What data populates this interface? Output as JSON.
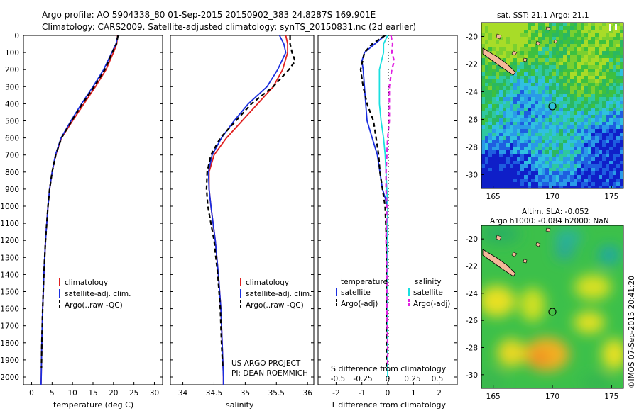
{
  "header": {
    "line1": "Argo profile: AO 5904338_80 01-Sep-2015 20150902_383 24.8287S 169.901E",
    "line2": "Climatology: CARS2009. Satellite-adjusted climatology: synTS_20150831.nc (2d earlier)"
  },
  "panels": {
    "temperature": {
      "xlabel": "temperature (deg C)",
      "xticks": [
        "0",
        "5",
        "10",
        "15",
        "20",
        "25",
        "30"
      ],
      "legend": [
        "climatology",
        "satellite-adj. clim.",
        "Argo(..raw -QC)"
      ]
    },
    "salinity": {
      "xlabel": "salinity",
      "xticks": [
        "34",
        "34.5",
        "35",
        "35.5",
        "36"
      ],
      "legend": [
        "climatology",
        "satellite-adj. clim.",
        "Argo(..raw -QC)"
      ],
      "note1": "US ARGO PROJECT",
      "note2": "PI: DEAN ROEMMICH"
    },
    "difference": {
      "xlabel": "T difference from climatology",
      "toplabel": "S difference from climatology",
      "xticks_T": [
        "-2",
        "-1",
        "0",
        "1",
        "2"
      ],
      "xticks_S": [
        "-0.5",
        "-0.25",
        "0",
        "0.25",
        "0.5"
      ],
      "legend_temp_title": "temperature",
      "legend_sal_title": "salinity",
      "legend_items": [
        "satellite",
        "Argo(-adj)",
        "satellite",
        "Argo(-adj)"
      ]
    },
    "sst_map": {
      "title": "sat. SST: 21.1  Argo: 21.1",
      "yticks": [
        "-20",
        "-22",
        "-24",
        "-26",
        "-28",
        "-30"
      ],
      "xticks": [
        "165",
        "170",
        "175"
      ]
    },
    "sla_map": {
      "title1": "Altim. SLA: -0.052",
      "title2": "Argo h1000: -0.084 h2000: NaN",
      "yticks": [
        "-20",
        "-22",
        "-24",
        "-26",
        "-28",
        "-30"
      ],
      "xticks": [
        "165",
        "170",
        "175"
      ],
      "stamp": "©IMOS 07-Sep-2015 20:41:20"
    },
    "depth_ticks": [
      "0",
      "100",
      "200",
      "300",
      "400",
      "500",
      "600",
      "700",
      "800",
      "900",
      "1000",
      "1100",
      "1200",
      "1300",
      "1400",
      "1500",
      "1600",
      "1700",
      "1800",
      "1900",
      "2000"
    ]
  },
  "colors": {
    "climatology": "#e02020",
    "satellite": "#1a2ee0",
    "argo": "#000000",
    "sal_satellite": "#19e0e0",
    "sal_argo": "#e020e0"
  },
  "chart_data": [
    {
      "type": "line",
      "xlabel": "temperature (deg C)",
      "ylabel": "",
      "xlim": [
        -2,
        32
      ],
      "ylim": [
        2060,
        0
      ],
      "x_axis": "temperature",
      "y_axis": "depth",
      "series": [
        {
          "name": "climatology",
          "depth": [
            0,
            50,
            100,
            200,
            300,
            400,
            500,
            600,
            700,
            800,
            900,
            1000,
            1200,
            1400,
            1600,
            1800,
            2000,
            2050
          ],
          "values": [
            21.0,
            20.8,
            20.0,
            18.2,
            15.6,
            12.8,
            10.0,
            7.3,
            5.9,
            5.0,
            4.4,
            4.0,
            3.4,
            3.0,
            2.7,
            2.5,
            2.35,
            2.3
          ]
        },
        {
          "name": "satellite-adj. clim.",
          "depth": [
            0,
            50,
            100,
            200,
            300,
            400,
            500,
            600,
            700,
            800,
            900,
            1000,
            1200,
            1400,
            1600,
            1800,
            2000,
            2050
          ],
          "values": [
            21.1,
            20.6,
            19.6,
            17.6,
            15.0,
            12.2,
            9.6,
            7.2,
            5.8,
            5.0,
            4.4,
            4.0,
            3.4,
            3.0,
            2.7,
            2.5,
            2.35,
            2.3
          ]
        },
        {
          "name": "Argo(..raw -QC)",
          "depth": [
            0,
            50,
            100,
            200,
            300,
            400,
            500,
            600,
            700,
            800,
            900,
            1000,
            1200,
            1400,
            1600,
            1800,
            1950
          ],
          "values": [
            21.1,
            20.7,
            19.7,
            17.9,
            15.3,
            12.4,
            9.8,
            7.3,
            5.9,
            5.0,
            4.4,
            4.0,
            3.4,
            3.0,
            2.7,
            2.5,
            2.4
          ]
        }
      ]
    },
    {
      "type": "line",
      "xlabel": "salinity",
      "ylabel": "",
      "xlim": [
        33.8,
        36.1
      ],
      "ylim": [
        2060,
        0
      ],
      "x_axis": "salinity",
      "y_axis": "depth",
      "series": [
        {
          "name": "climatology",
          "depth": [
            0,
            50,
            100,
            200,
            300,
            400,
            500,
            600,
            700,
            800,
            900,
            1000,
            1200,
            1400,
            1600,
            1800,
            2000,
            2050
          ],
          "values": [
            35.65,
            35.68,
            35.68,
            35.6,
            35.45,
            35.2,
            34.95,
            34.7,
            34.5,
            34.42,
            34.42,
            34.45,
            34.52,
            34.57,
            34.61,
            34.63,
            34.65,
            34.65
          ]
        },
        {
          "name": "satellite-adj. clim.",
          "depth": [
            0,
            50,
            100,
            200,
            300,
            400,
            500,
            600,
            700,
            800,
            900,
            1000,
            1200,
            1400,
            1600,
            1800,
            2000,
            2050
          ],
          "values": [
            35.55,
            35.62,
            35.65,
            35.52,
            35.35,
            35.05,
            34.82,
            34.62,
            34.47,
            34.41,
            34.42,
            34.45,
            34.52,
            34.57,
            34.61,
            34.63,
            34.65,
            34.65
          ]
        },
        {
          "name": "Argo(..raw -QC)",
          "depth": [
            0,
            50,
            100,
            150,
            200,
            300,
            400,
            500,
            600,
            700,
            800,
            900,
            1000,
            1200,
            1400,
            1600,
            1800,
            1950
          ],
          "values": [
            35.72,
            35.72,
            35.75,
            35.8,
            35.7,
            35.45,
            35.1,
            34.85,
            34.6,
            34.45,
            34.39,
            34.38,
            34.4,
            34.5,
            34.56,
            34.6,
            34.62,
            34.64
          ]
        }
      ]
    },
    {
      "type": "line",
      "xlabel": "T difference from climatology",
      "ylabel": "S difference from climatology",
      "xlim": [
        -2.7,
        2.7
      ],
      "ylim": [
        2060,
        0
      ],
      "x_axis": "T difference",
      "y_axis": "depth",
      "series": [
        {
          "name": "satellite",
          "depth": [
            0,
            50,
            100,
            150,
            200,
            300,
            400,
            500,
            600,
            700,
            800,
            900,
            1000
          ],
          "values": [
            -0.1,
            -0.5,
            -0.9,
            -1.0,
            -0.95,
            -0.9,
            -0.85,
            -0.8,
            -0.6,
            -0.4,
            -0.3,
            -0.2,
            0
          ]
        },
        {
          "name": "Argo(-adj)",
          "depth": [
            0,
            50,
            100,
            200,
            300,
            400,
            500,
            600,
            700,
            800,
            900,
            1000,
            1200,
            1400,
            1600,
            1800,
            1950
          ],
          "values": [
            -0.1,
            -0.6,
            -0.9,
            -1.05,
            -0.95,
            -0.8,
            -0.55,
            -0.45,
            -0.35,
            -0.3,
            -0.2,
            -0.1,
            -0.05,
            -0.05,
            -0.05,
            -0.05,
            -0.05
          ]
        },
        {
          "name": "salinity satellite",
          "depth": [
            0,
            50,
            100,
            200,
            300,
            400,
            500,
            600,
            700,
            800,
            900,
            1000,
            1200,
            1400,
            1600,
            1800,
            2000
          ],
          "values": [
            0,
            -0.05,
            -0.05,
            -0.1,
            -0.1,
            -0.1,
            -0.08,
            -0.05,
            -0.03,
            -0.02,
            -0.01,
            0,
            0,
            0,
            0,
            0,
            0
          ]
        },
        {
          "name": "salinity Argo(-adj)",
          "depth": [
            0,
            50,
            100,
            150,
            200,
            300,
            400,
            500,
            600,
            700,
            800,
            900,
            1000,
            1200,
            1400,
            1600,
            1800,
            1950
          ],
          "values": [
            0.04,
            0.06,
            0.05,
            0.08,
            0.05,
            0.02,
            0.02,
            0.02,
            0.0,
            -0.01,
            -0.02,
            -0.02,
            -0.01,
            -0.02,
            -0.01,
            -0.01,
            0,
            0
          ]
        }
      ]
    },
    {
      "type": "heatmap",
      "title": "sat. SST: 21.1  Argo: 21.1",
      "xlim": [
        164,
        176
      ],
      "ylim": [
        -31,
        -19
      ]
    },
    {
      "type": "heatmap",
      "title": "Altim. SLA: -0.052",
      "xlim": [
        164,
        176
      ],
      "ylim": [
        -31,
        -19
      ]
    }
  ]
}
